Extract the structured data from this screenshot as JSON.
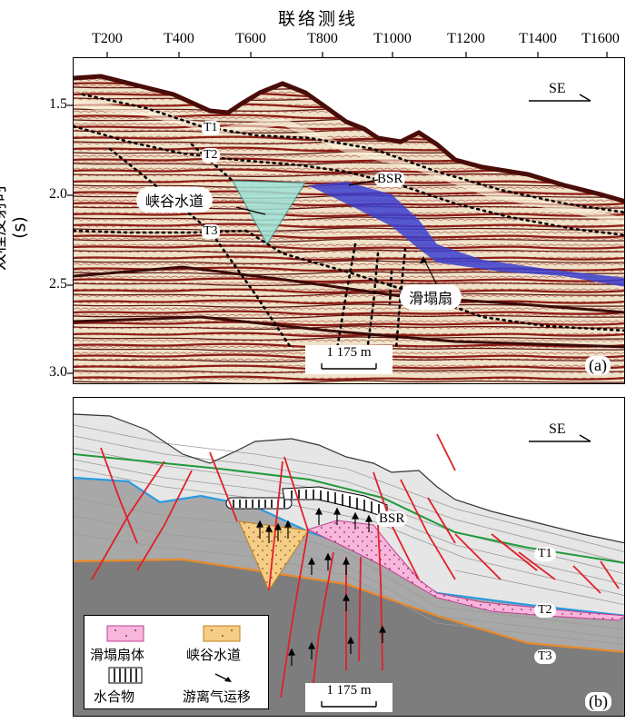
{
  "top_axis": {
    "title": "联络测线",
    "ticks": [
      "T200",
      "T400",
      "T600",
      "T800",
      "T1000",
      "T1200",
      "T1400",
      "T1600"
    ]
  },
  "y_axis": {
    "title": "双程反射时(s)",
    "ticks": [
      "1.5",
      "2.0",
      "2.5",
      "3.0"
    ]
  },
  "panel_a": {
    "direction": "SE",
    "horizon_labels": [
      "T1",
      "T2",
      "T3"
    ],
    "bsr_label": "BSR",
    "canyon_label": "峡谷水道",
    "slump_label": "滑塌扇",
    "scale_label": "1 175 m",
    "panel_label": "(a)"
  },
  "panel_b": {
    "direction": "SE",
    "horizon_labels": [
      "T1",
      "T2",
      "T3"
    ],
    "bsr_label": "BSR",
    "scale_label": "1 175 m",
    "panel_label": "(b)"
  },
  "legend": {
    "items": [
      "滑塌扇体",
      "峡谷水道",
      "水合物",
      "游离气运移"
    ]
  },
  "colors": {
    "seismic_red": "#8b1a14",
    "canyon_fill": "#9fe3d8",
    "slump_blue": "#3b3fd0",
    "slump_fill": "#f8b6dc",
    "canyon_legend_fill": "#f6cd86",
    "fault_red": "#e0202a",
    "horizon_green": "#1f9a3a",
    "horizon_blue": "#2a9be0",
    "horizon_orange": "#e88a2a"
  }
}
